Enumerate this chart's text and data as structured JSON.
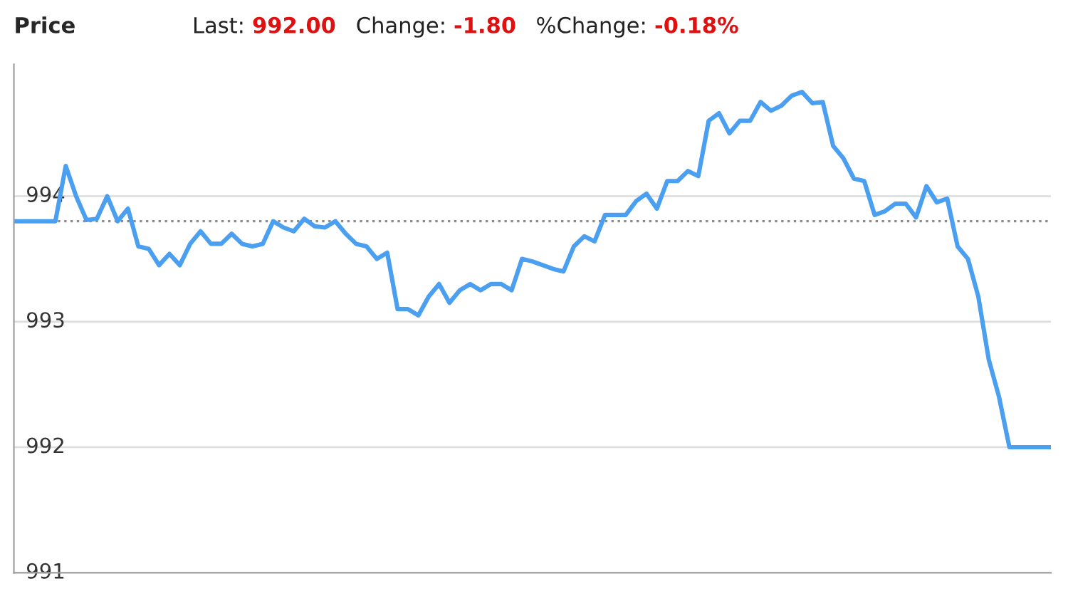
{
  "chart_data": {
    "type": "line",
    "title": "Price",
    "annotations": [
      "Last:",
      "992.00",
      "Change:",
      "-1.80",
      "%Change:",
      "-0.18%"
    ],
    "categories": [
      null,
      null,
      null,
      null,
      null,
      null,
      null,
      null,
      null,
      null,
      null,
      null,
      null,
      null,
      null,
      null,
      null,
      null,
      null,
      null,
      null,
      null,
      null,
      null,
      null,
      null,
      null,
      null,
      null,
      null,
      null,
      null,
      null,
      null,
      null,
      null,
      null,
      null,
      null,
      null,
      null,
      null,
      null,
      null,
      null,
      null,
      null,
      null,
      null,
      null,
      null,
      null,
      null,
      null,
      null,
      null,
      null,
      null,
      null,
      null,
      null,
      null,
      null,
      null,
      null,
      null,
      null,
      null,
      null,
      null,
      null,
      null,
      null,
      null,
      null,
      null,
      null,
      null,
      null,
      null,
      null,
      null,
      null,
      null,
      null,
      null,
      null,
      null,
      null,
      null,
      null,
      null,
      null,
      null,
      null,
      null,
      null,
      null,
      null,
      null,
      null
    ],
    "series": [
      {
        "color": "#4a9ff0",
        "values": [
          993.8,
          993.8,
          993.8,
          993.8,
          993.8,
          994.24,
          994.0,
          993.81,
          993.82,
          994.0,
          993.8,
          993.9,
          993.6,
          993.58,
          993.45,
          993.54,
          993.45,
          993.62,
          993.72,
          993.62,
          993.62,
          993.7,
          993.62,
          993.6,
          993.62,
          993.8,
          993.75,
          993.72,
          993.82,
          993.76,
          993.75,
          993.8,
          993.7,
          993.62,
          993.6,
          993.5,
          993.55,
          993.1,
          993.1,
          993.05,
          993.2,
          993.3,
          993.15,
          993.25,
          993.3,
          993.25,
          993.3,
          993.3,
          993.25,
          993.5,
          993.48,
          993.45,
          993.42,
          993.4,
          993.6,
          993.68,
          993.64,
          993.85,
          993.85,
          993.85,
          993.96,
          994.02,
          993.9,
          994.12,
          994.12,
          994.2,
          994.16,
          994.6,
          994.66,
          994.5,
          994.6,
          994.6,
          994.75,
          994.68,
          994.72,
          994.8,
          994.83,
          994.74,
          994.75,
          994.4,
          994.3,
          994.14,
          994.12,
          993.85,
          993.88,
          993.94,
          993.94,
          993.83,
          994.08,
          993.95,
          993.98,
          993.6,
          993.5,
          993.2,
          992.7,
          992.4,
          992.0,
          992.0,
          992.0,
          992.0,
          992.0
        ]
      }
    ],
    "ylim": [
      991,
      995.05
    ],
    "yticks": [
      991,
      992,
      993,
      994
    ],
    "ref_lines": [
      {
        "axis": "y",
        "value": 993.8,
        "color": "#8c8c8c",
        "line_style": "dotted"
      }
    ],
    "grid": "y",
    "marker": "none",
    "line_style": "solid"
  }
}
